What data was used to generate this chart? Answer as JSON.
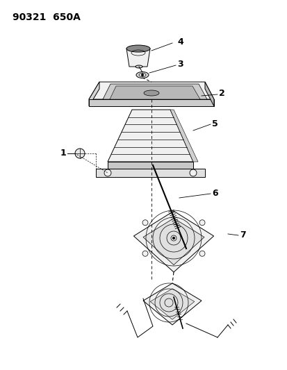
{
  "title": "90321  650A",
  "bg": "#ffffff",
  "lc": "#000000",
  "gray_light": "#e8e8e8",
  "gray_mid": "#c8c8c8",
  "gray_dark": "#aaaaaa",
  "label_fs": 9,
  "title_fs": 10
}
